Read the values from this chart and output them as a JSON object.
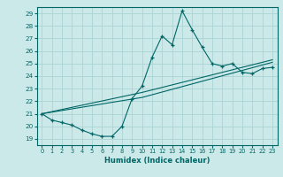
{
  "xlabel": "Humidex (Indice chaleur)",
  "xlim": [
    -0.5,
    23.5
  ],
  "ylim": [
    18.5,
    29.5
  ],
  "yticks": [
    19,
    20,
    21,
    22,
    23,
    24,
    25,
    26,
    27,
    28,
    29
  ],
  "xticks": [
    0,
    1,
    2,
    3,
    4,
    5,
    6,
    7,
    8,
    9,
    10,
    11,
    12,
    13,
    14,
    15,
    16,
    17,
    18,
    19,
    20,
    21,
    22,
    23
  ],
  "bg_color": "#cce9e9",
  "grid_color": "#aad4d4",
  "line_color": "#006666",
  "line1_x": [
    0,
    1,
    2,
    3,
    4,
    5,
    6,
    7,
    8,
    9,
    10,
    11,
    12,
    13,
    14,
    15,
    16,
    17,
    18,
    19,
    20,
    21,
    22,
    23
  ],
  "line1_y": [
    21.0,
    20.5,
    20.3,
    20.1,
    19.7,
    19.4,
    19.2,
    19.2,
    20.0,
    22.2,
    23.2,
    25.5,
    27.2,
    26.5,
    29.2,
    27.7,
    26.3,
    25.0,
    24.8,
    25.0,
    24.3,
    24.2,
    24.6,
    24.7
  ],
  "line2_x": [
    0,
    10,
    23
  ],
  "line2_y": [
    21.0,
    22.3,
    25.1
  ],
  "line3_x": [
    0,
    10,
    23
  ],
  "line3_y": [
    21.0,
    22.7,
    25.3
  ]
}
